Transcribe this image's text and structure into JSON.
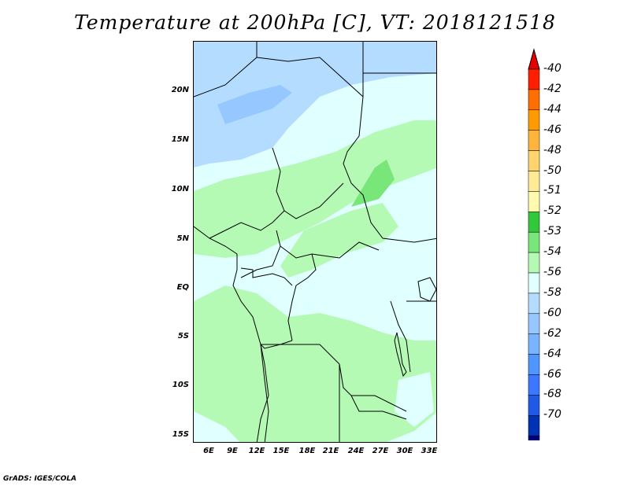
{
  "title": "Temperature at 200hPa [C], VT: 2018121518",
  "footer": "GrADS: IGES/COLA",
  "map": {
    "lat_labels": [
      "20N",
      "15N",
      "10N",
      "5N",
      "EQ",
      "5S",
      "10S",
      "15S"
    ],
    "lon_labels": [
      "6E",
      "9E",
      "12E",
      "15E",
      "18E",
      "21E",
      "24E",
      "27E",
      "30E",
      "33E"
    ]
  },
  "colorbar": {
    "labels": [
      "-40",
      "-42",
      "-44",
      "-46",
      "-48",
      "-50",
      "-51",
      "-52",
      "-53",
      "-54",
      "-56",
      "-58",
      "-60",
      "-62",
      "-64",
      "-66",
      "-68",
      "-70"
    ],
    "colors": [
      "#ff1e00",
      "#ff6e00",
      "#ff9b00",
      "#ffb43c",
      "#ffd46e",
      "#ffeb96",
      "#fffaaf",
      "#32c83c",
      "#78e678",
      "#b4fab4",
      "#e0ffff",
      "#b4dcff",
      "#96c8ff",
      "#78b4ff",
      "#5096ff",
      "#3c78ff",
      "#1e5ae6",
      "#0032b4",
      "#00007c"
    ],
    "top_arrow_color": "#e60000",
    "bottom_arrow_color": "#dcdcff"
  }
}
